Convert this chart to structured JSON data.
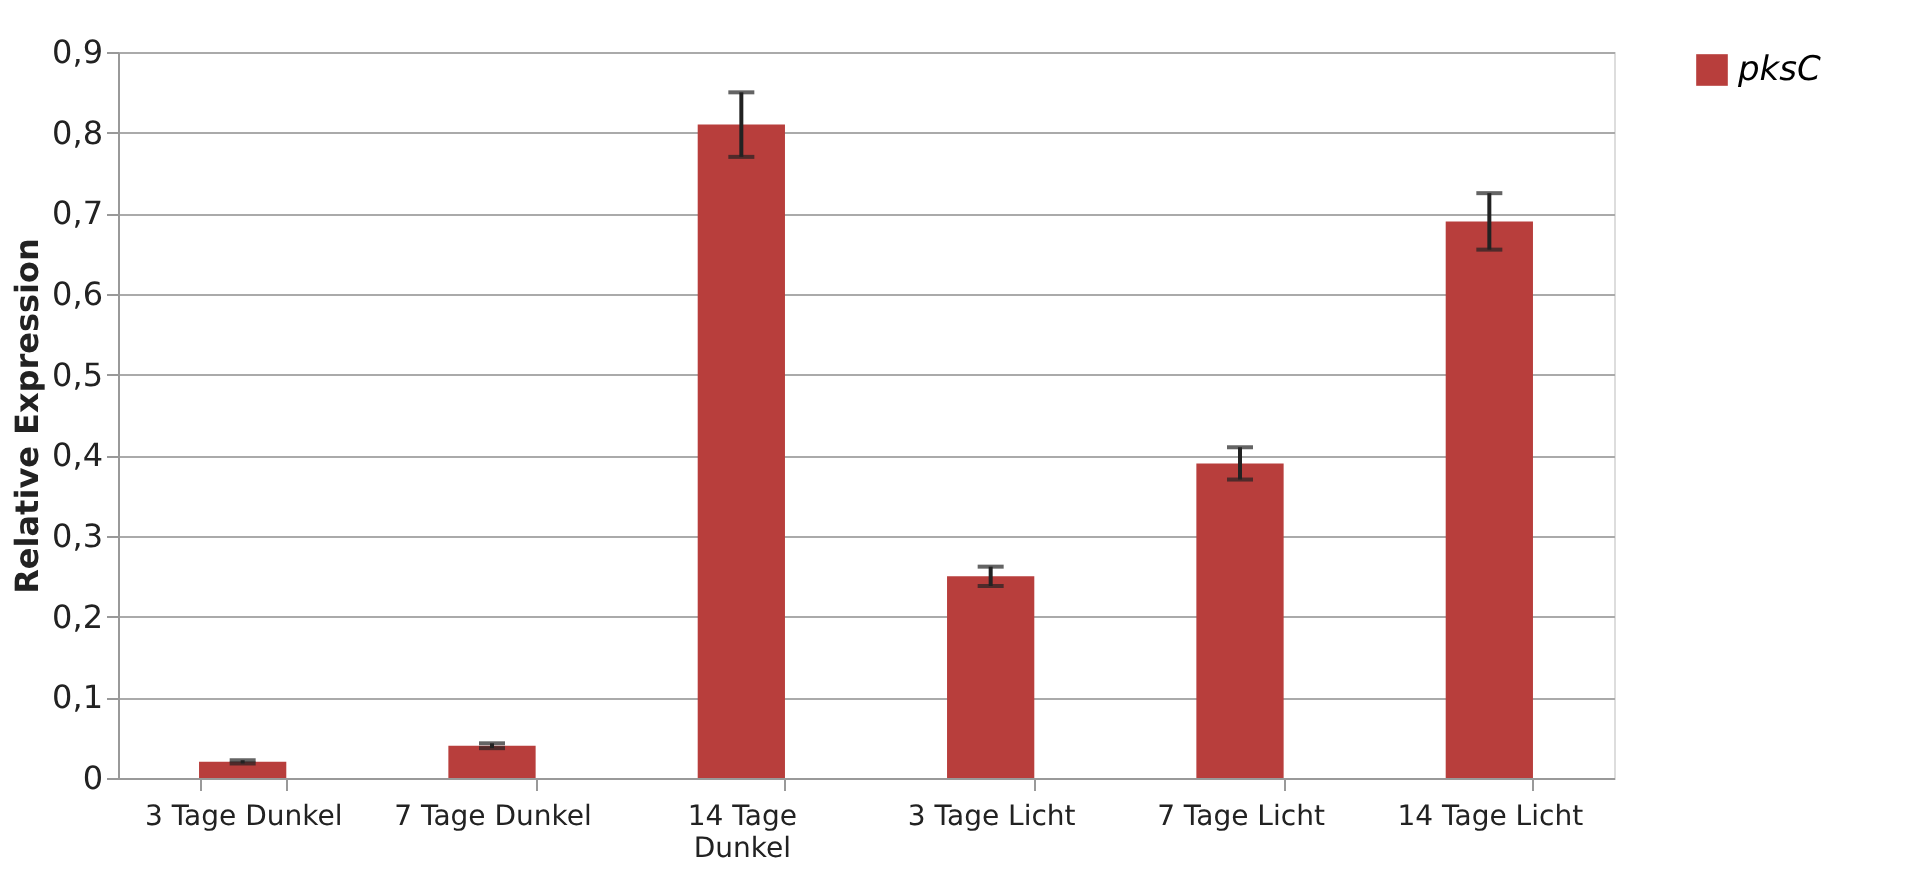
{
  "chart_data": {
    "type": "bar",
    "ylabel": "Relative Expression",
    "categories": [
      "3 Tage Dunkel",
      "7 Tage Dunkel",
      "14 Tage Dunkel",
      "3 Tage Licht",
      "7 Tage Licht",
      "14 Tage Licht"
    ],
    "series": [
      {
        "name": "pksC",
        "color": "#b83e3c",
        "values": [
          0.02,
          0.04,
          0.81,
          0.25,
          0.39,
          0.69
        ],
        "errors": [
          0.002,
          0.003,
          0.04,
          0.012,
          0.02,
          0.035
        ]
      }
    ],
    "ylim": [
      0,
      0.9
    ],
    "yticks": [
      0,
      {
        "value": 0.1,
        "label": "0,1"
      },
      {
        "value": 0.2,
        "label": "0,2"
      },
      {
        "value": 0.3,
        "label": "0,3"
      },
      {
        "value": 0.4,
        "label": "0,4"
      },
      {
        "value": 0.5,
        "label": "0,5"
      },
      {
        "value": 0.6,
        "label": "0,6"
      },
      {
        "value": 0.7,
        "label": "0,7"
      },
      {
        "value": 0.8,
        "label": "0,8"
      },
      {
        "value": 0.9,
        "label": "0,9"
      }
    ],
    "grid": "y",
    "legend": "right"
  }
}
